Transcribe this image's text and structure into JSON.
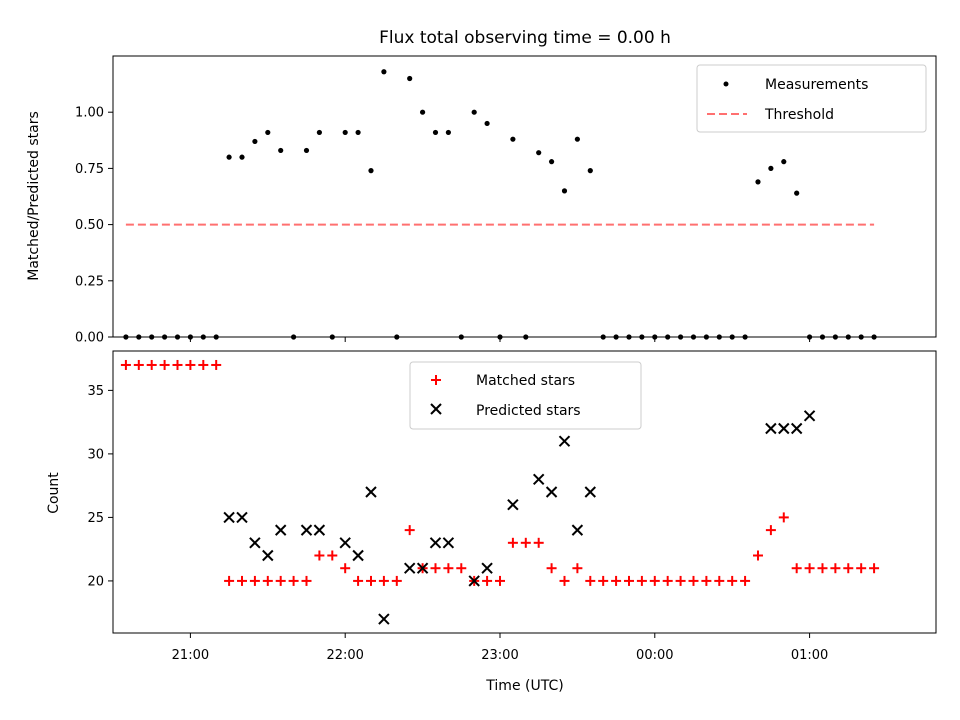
{
  "chart_data": [
    {
      "type": "scatter",
      "title": "Flux total observing time = 0.00 h",
      "ylabel": "Matched/Predicted stars",
      "xlabel": "",
      "x_unit": "time (UTC)",
      "xlim": [
        "20:30",
        "01:49"
      ],
      "ylim": [
        0,
        1.25
      ],
      "yticks": [
        0.0,
        0.25,
        0.5,
        0.75,
        1.0
      ],
      "ytick_labels": [
        "0.00",
        "0.25",
        "0.50",
        "0.75",
        "1.00"
      ],
      "legend": {
        "placement": "upper right",
        "entries": [
          "Measurements",
          "Threshold"
        ]
      },
      "series": [
        {
          "name": "Measurements",
          "style": "points",
          "color": "#000000",
          "x": [
            "20:35",
            "20:40",
            "20:45",
            "20:50",
            "20:55",
            "21:00",
            "21:05",
            "21:10",
            "21:15",
            "21:20",
            "21:25",
            "21:30",
            "21:35",
            "21:40",
            "21:45",
            "21:50",
            "21:55",
            "22:00",
            "22:05",
            "22:10",
            "22:15",
            "22:20",
            "22:25",
            "22:30",
            "22:35",
            "22:40",
            "22:45",
            "22:50",
            "22:55",
            "23:00",
            "23:05",
            "23:10",
            "23:15",
            "23:20",
            "23:25",
            "23:30",
            "23:35",
            "23:40",
            "23:45",
            "23:50",
            "23:55",
            "00:00",
            "00:05",
            "00:10",
            "00:15",
            "00:20",
            "00:25",
            "00:30",
            "00:35",
            "00:40",
            "00:45",
            "00:50",
            "00:55",
            "01:00",
            "01:05",
            "01:10",
            "01:15",
            "01:20",
            "01:25"
          ],
          "y": [
            0,
            0,
            0,
            0,
            0,
            0,
            0,
            0,
            0.8,
            0.8,
            0.87,
            0.91,
            0.83,
            0,
            0.83,
            0.91,
            0,
            0.91,
            0.91,
            0.74,
            1.18,
            0,
            1.15,
            1.0,
            0.91,
            0.91,
            0,
            1.0,
            0.95,
            0,
            0.88,
            0,
            0.82,
            0.78,
            0.65,
            0.88,
            0.74,
            0,
            0,
            0,
            0,
            0,
            0,
            0,
            0,
            0,
            0,
            0,
            0,
            0.69,
            0.75,
            0.78,
            0.64,
            0,
            0,
            0,
            0,
            0,
            0
          ]
        },
        {
          "name": "Threshold",
          "style": "dashed-line",
          "color": "#ff7070",
          "x": [
            "20:35",
            "01:25"
          ],
          "y": [
            0.5,
            0.5
          ]
        }
      ]
    },
    {
      "type": "scatter",
      "title": "",
      "ylabel": "Count",
      "xlabel": "Time (UTC)",
      "x_unit": "time (UTC)",
      "xlim": [
        "20:30",
        "01:49"
      ],
      "ylim": [
        15.9,
        38.1
      ],
      "yticks": [
        20,
        25,
        30,
        35
      ],
      "ytick_labels": [
        "20",
        "25",
        "30",
        "35"
      ],
      "xticks": [
        "21:00",
        "22:00",
        "23:00",
        "00:00",
        "01:00"
      ],
      "xtick_labels": [
        "21:00",
        "22:00",
        "23:00",
        "00:00",
        "01:00"
      ],
      "legend": {
        "placement": "upper center",
        "entries": [
          "Matched stars",
          "Predicted stars"
        ]
      },
      "series": [
        {
          "name": "Matched stars",
          "marker": "plus",
          "color": "#ff0000",
          "x": [
            "20:35",
            "20:40",
            "20:45",
            "20:50",
            "20:55",
            "21:00",
            "21:05",
            "21:10",
            "21:15",
            "21:20",
            "21:25",
            "21:30",
            "21:35",
            "21:40",
            "21:45",
            "21:50",
            "21:55",
            "22:00",
            "22:05",
            "22:10",
            "22:15",
            "22:20",
            "22:25",
            "22:30",
            "22:35",
            "22:40",
            "22:45",
            "22:50",
            "22:55",
            "23:00",
            "23:05",
            "23:10",
            "23:15",
            "23:20",
            "23:25",
            "23:30",
            "23:35",
            "23:40",
            "23:45",
            "23:50",
            "23:55",
            "00:00",
            "00:05",
            "00:10",
            "00:15",
            "00:20",
            "00:25",
            "00:30",
            "00:35",
            "00:40",
            "00:45",
            "00:50",
            "00:55",
            "01:00",
            "01:05",
            "01:10",
            "01:15",
            "01:20",
            "01:25"
          ],
          "y": [
            37,
            37,
            37,
            37,
            37,
            37,
            37,
            37,
            20,
            20,
            20,
            20,
            20,
            20,
            20,
            22,
            22,
            21,
            20,
            20,
            20,
            20,
            24,
            21,
            21,
            21,
            21,
            20,
            20,
            20,
            23,
            23,
            23,
            21,
            20,
            21,
            20,
            20,
            20,
            20,
            20,
            20,
            20,
            20,
            20,
            20,
            20,
            20,
            20,
            22,
            24,
            25,
            21,
            21,
            21,
            21,
            21,
            21,
            21
          ]
        },
        {
          "name": "Predicted stars",
          "marker": "x",
          "color": "#000000",
          "x": [
            "21:15",
            "21:20",
            "21:25",
            "21:30",
            "21:35",
            "21:45",
            "21:50",
            "22:00",
            "22:05",
            "22:10",
            "22:15",
            "22:25",
            "22:30",
            "22:35",
            "22:40",
            "22:50",
            "22:55",
            "23:05",
            "23:15",
            "23:20",
            "23:25",
            "23:30",
            "23:35",
            "00:45",
            "00:50",
            "00:55",
            "01:00"
          ],
          "y": [
            25,
            25,
            23,
            22,
            24,
            24,
            24,
            23,
            22,
            27,
            17,
            21,
            21,
            23,
            23,
            20,
            21,
            26,
            28,
            27,
            31,
            24,
            27,
            32,
            32,
            32,
            33
          ]
        }
      ]
    }
  ]
}
